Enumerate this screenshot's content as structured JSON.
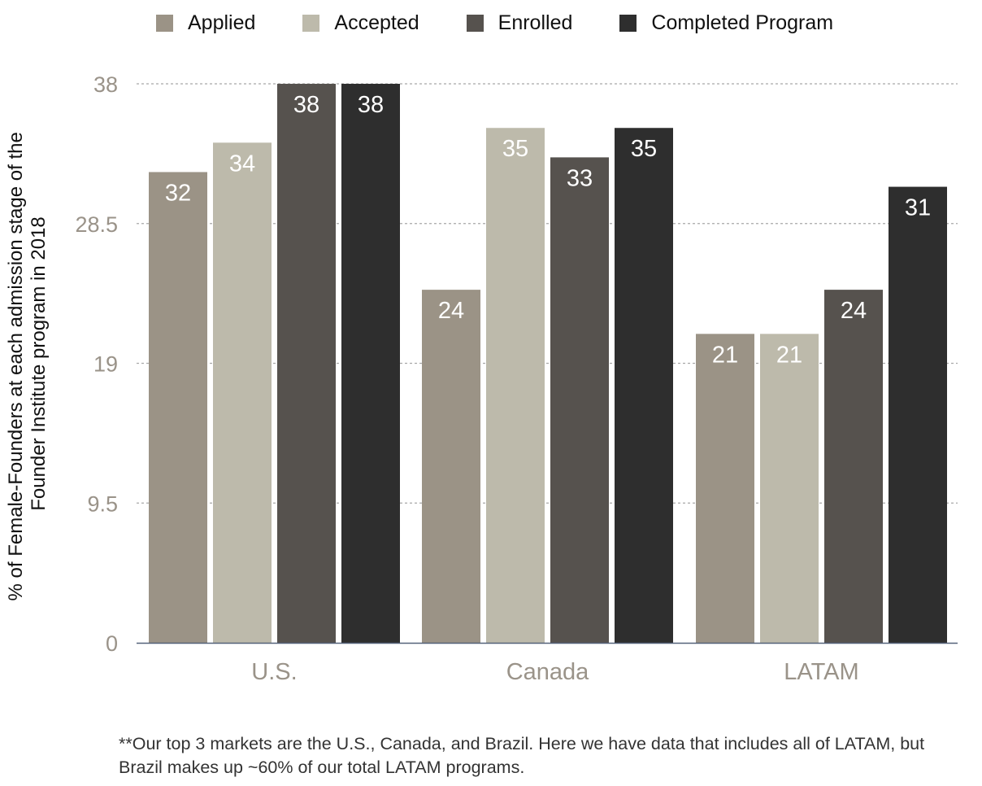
{
  "chart_data": {
    "type": "bar",
    "title": "",
    "categories": [
      "U.S.",
      "Canada",
      "LATAM"
    ],
    "series": [
      {
        "name": "Applied",
        "color": "#9b9386",
        "values": [
          32,
          24,
          21
        ]
      },
      {
        "name": "Accepted",
        "color": "#bdbaab",
        "values": [
          34,
          35,
          21
        ]
      },
      {
        "name": "Enrolled",
        "color": "#56524e",
        "values": [
          38,
          33,
          24
        ]
      },
      {
        "name": "Completed Program",
        "color": "#2e2e2e",
        "values": [
          38,
          35,
          31
        ]
      }
    ],
    "ylabel_lines": [
      "% of Female-Founders at each admission stage of the",
      "Founder Institute program in 2018"
    ],
    "xlabel": "",
    "ylim": [
      0,
      38
    ],
    "yticks": [
      "0",
      "9.5",
      "19",
      "28.5",
      "38"
    ],
    "grid": true,
    "legend_position": "top",
    "data_labels": true
  },
  "footnote": "**Our top 3 markets are the U.S., Canada, and Brazil. Here we have data that includes all of LATAM, but Brazil makes up ~60% of our total LATAM programs."
}
